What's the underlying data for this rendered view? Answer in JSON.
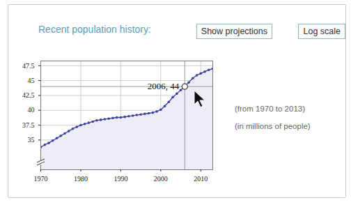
{
  "header": {
    "title": "Recent population history:",
    "buttons": [
      "Show projections",
      "Log scale"
    ]
  },
  "chart_data": {
    "type": "line",
    "x": [
      1970,
      1971,
      1972,
      1973,
      1974,
      1975,
      1976,
      1977,
      1978,
      1979,
      1980,
      1981,
      1982,
      1983,
      1984,
      1985,
      1986,
      1987,
      1988,
      1989,
      1990,
      1991,
      1992,
      1993,
      1994,
      1995,
      1996,
      1997,
      1998,
      1999,
      2000,
      2001,
      2002,
      2003,
      2004,
      2005,
      2006,
      2007,
      2008,
      2009,
      2010,
      2011,
      2012,
      2013
    ],
    "values": [
      33.8,
      34.2,
      34.5,
      34.9,
      35.3,
      35.7,
      36.1,
      36.5,
      36.9,
      37.2,
      37.5,
      37.7,
      37.9,
      38.1,
      38.3,
      38.4,
      38.5,
      38.6,
      38.7,
      38.8,
      38.8,
      38.9,
      39.0,
      39.1,
      39.2,
      39.3,
      39.4,
      39.5,
      39.6,
      39.8,
      40.1,
      40.7,
      41.4,
      42.2,
      42.8,
      43.4,
      44.0,
      44.7,
      45.4,
      45.9,
      46.2,
      46.5,
      46.8,
      47.0
    ],
    "xlim": [
      1970,
      2013
    ],
    "ylim": [
      30,
      48.3
    ],
    "xticks": [
      1970,
      1980,
      1990,
      2000,
      2010
    ],
    "yticks": [
      35,
      37.5,
      40,
      42.5,
      45,
      47.5
    ],
    "grid": true,
    "marker": "circle",
    "color": "#3c40a0",
    "annotation": {
      "x": 2006,
      "y": 44,
      "label": "2006, 44"
    }
  },
  "notes": [
    "(from 1970 to 2013)",
    "(in millions of people)"
  ]
}
